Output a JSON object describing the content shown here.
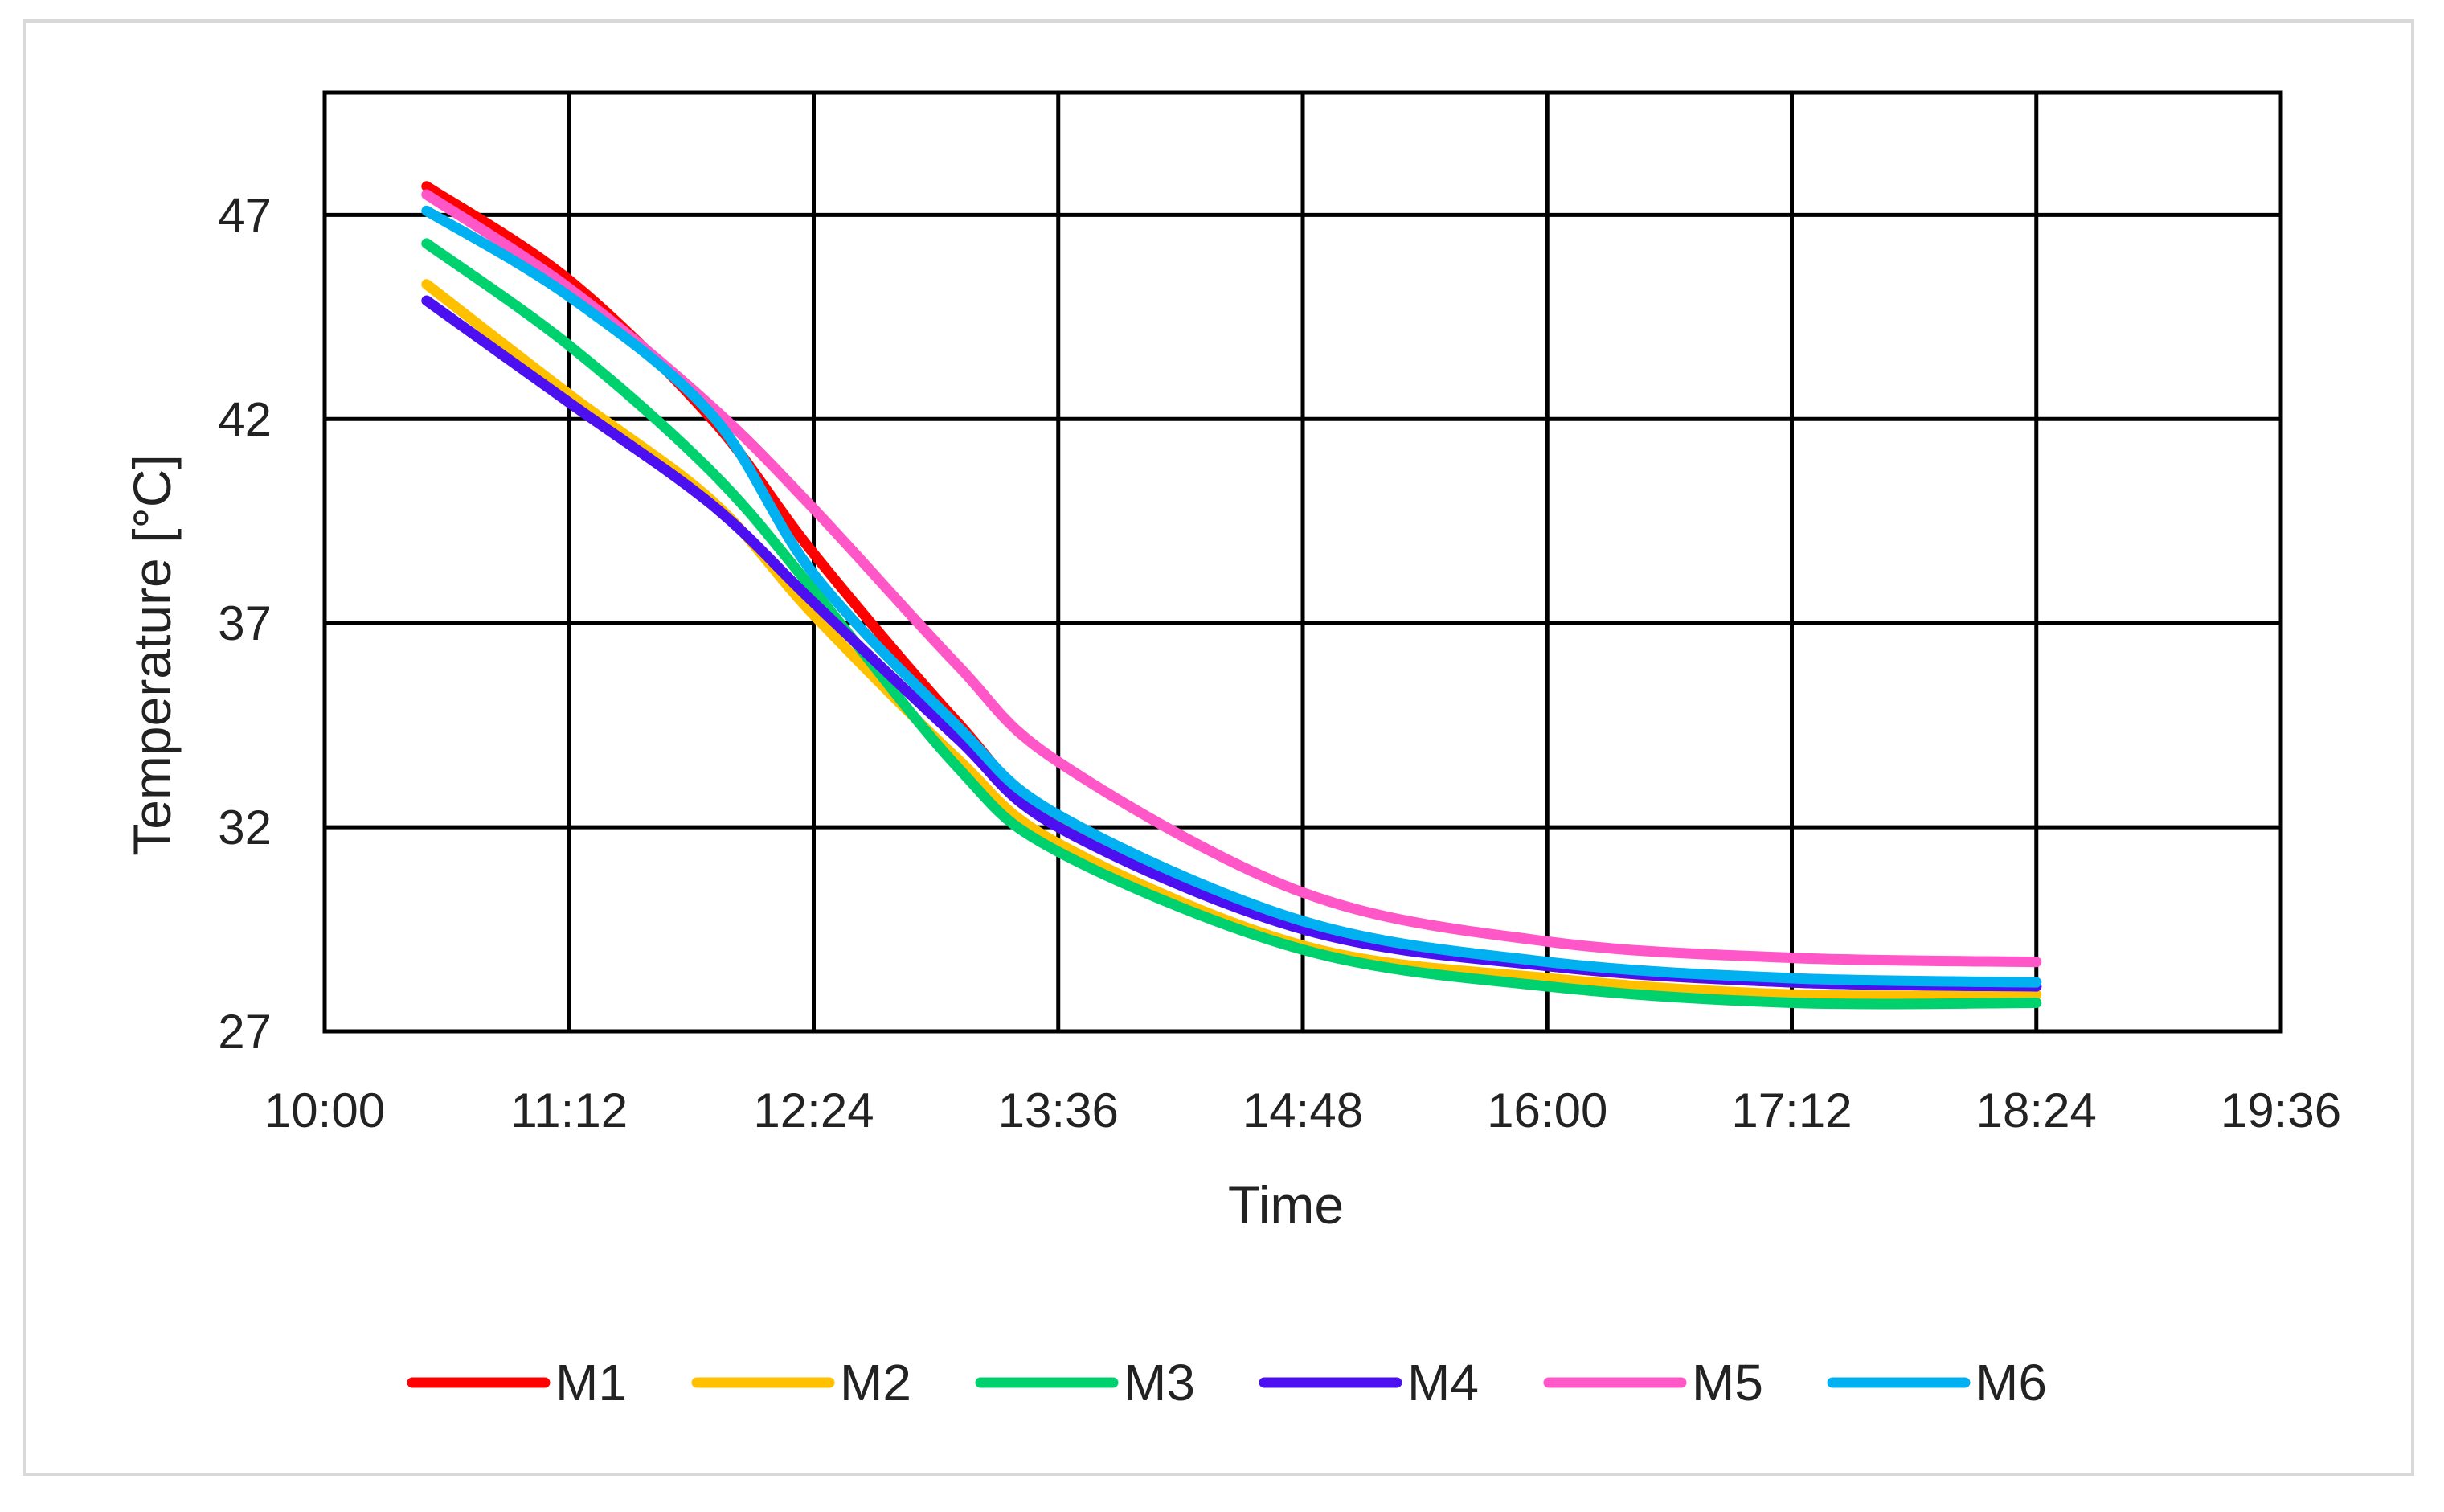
{
  "chart_data": {
    "type": "line",
    "title": "",
    "xlabel": "Time",
    "ylabel": "Temperature [°C]",
    "x_ticks": [
      "10:00",
      "11:12",
      "12:24",
      "13:36",
      "14:48",
      "16:00",
      "17:12",
      "18:24",
      "19:36"
    ],
    "y_ticks": [
      "27",
      "32",
      "37",
      "42",
      "47"
    ],
    "xlim": [
      "10:00",
      "19:36"
    ],
    "ylim": [
      27,
      50
    ],
    "grid": true,
    "legend_position": "bottom",
    "x": [
      "10:30",
      "11:12",
      "11:54",
      "12:24",
      "13:06",
      "13:36",
      "14:48",
      "16:00",
      "17:12",
      "18:24"
    ],
    "series": [
      {
        "name": "M1",
        "color": "#ff0000",
        "values": [
          47.7,
          45.4,
          42.0,
          38.7,
          34.6,
          32.2,
          29.6,
          28.6,
          28.2,
          28.1
        ]
      },
      {
        "name": "M2",
        "color": "#ffc000",
        "values": [
          45.3,
          42.6,
          40.0,
          37.2,
          33.7,
          31.6,
          29.1,
          28.3,
          27.9,
          27.9
        ]
      },
      {
        "name": "M3",
        "color": "#00d16f",
        "values": [
          46.3,
          43.8,
          40.7,
          37.8,
          33.5,
          31.4,
          29.0,
          28.1,
          27.7,
          27.7
        ]
      },
      {
        "name": "M4",
        "color": "#4b0ff0",
        "values": [
          44.9,
          42.4,
          39.9,
          37.5,
          34.2,
          32.0,
          29.5,
          28.6,
          28.2,
          28.1
        ]
      },
      {
        "name": "M5",
        "color": "#ff56c8",
        "values": [
          47.5,
          45.2,
          42.3,
          39.8,
          36.0,
          33.6,
          30.4,
          29.2,
          28.8,
          28.7
        ]
      },
      {
        "name": "M6",
        "color": "#00b0f0",
        "values": [
          47.1,
          45.0,
          42.1,
          38.2,
          34.5,
          32.3,
          29.7,
          28.7,
          28.3,
          28.2
        ]
      }
    ]
  }
}
